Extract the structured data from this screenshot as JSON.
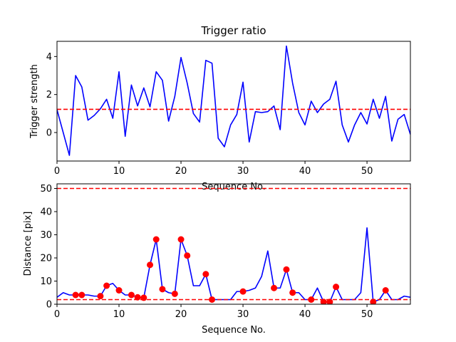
{
  "chart_data": [
    {
      "type": "line",
      "title": "Trigger ratio",
      "xlabel": "Sequence No.",
      "ylabel": "Trigger strength",
      "xlim": [
        0,
        57
      ],
      "ylim": [
        -1.5,
        4.8
      ],
      "xticks": [
        0,
        10,
        20,
        30,
        40,
        50
      ],
      "yticks": [
        0,
        2,
        4
      ],
      "grid": false,
      "threshold": 1.22,
      "series": [
        {
          "color": "#0000ff",
          "x": [
            0,
            1,
            2,
            3,
            4,
            5,
            6,
            7,
            8,
            9,
            10,
            11,
            12,
            13,
            14,
            15,
            16,
            17,
            18,
            19,
            20,
            21,
            22,
            23,
            24,
            25,
            26,
            27,
            28,
            29,
            30,
            31,
            32,
            33,
            34,
            35,
            36,
            37,
            38,
            39,
            40,
            41,
            42,
            43,
            44,
            45,
            46,
            47,
            48,
            49,
            50,
            51,
            52,
            53,
            54,
            55,
            56,
            57
          ],
          "values": [
            1.2,
            0.0,
            -1.2,
            3.0,
            2.4,
            0.65,
            0.9,
            1.25,
            1.75,
            0.75,
            3.2,
            -0.2,
            2.5,
            1.4,
            2.35,
            1.35,
            3.2,
            2.75,
            0.6,
            1.9,
            3.95,
            2.6,
            1.0,
            0.55,
            3.8,
            3.65,
            -0.3,
            -0.75,
            0.4,
            0.95,
            2.65,
            -0.5,
            1.1,
            1.05,
            1.1,
            1.4,
            0.15,
            4.55,
            2.6,
            1.05,
            0.4,
            1.65,
            1.05,
            1.5,
            1.75,
            2.7,
            0.4,
            -0.5,
            0.4,
            1.05,
            0.45,
            1.75,
            0.75,
            1.9,
            -0.45,
            0.7,
            0.95,
            -0.1
          ]
        }
      ],
      "reference_lines": [
        {
          "axis": "y",
          "value": 1.22,
          "color": "#ff0000",
          "style": "dashed"
        }
      ]
    },
    {
      "type": "line",
      "title": "",
      "xlabel": "Sequence No.",
      "ylabel": "Distance [pix]",
      "xlim": [
        0,
        57
      ],
      "ylim": [
        0,
        52
      ],
      "xticks": [
        0,
        10,
        20,
        30,
        40,
        50
      ],
      "yticks": [
        0,
        10,
        20,
        30,
        40,
        50
      ],
      "grid": false,
      "series": [
        {
          "color": "#0000ff",
          "x": [
            0,
            1,
            2,
            3,
            4,
            5,
            6,
            7,
            8,
            9,
            10,
            11,
            12,
            13,
            14,
            15,
            16,
            17,
            18,
            19,
            20,
            21,
            22,
            23,
            24,
            25,
            26,
            27,
            28,
            29,
            30,
            31,
            32,
            33,
            34,
            35,
            36,
            37,
            38,
            39,
            40,
            41,
            42,
            43,
            44,
            45,
            46,
            47,
            48,
            49,
            50,
            51,
            52,
            53,
            54,
            55,
            56,
            57
          ],
          "values": [
            3,
            5,
            4,
            4,
            4,
            4,
            3.5,
            3.5,
            8,
            9,
            6,
            4,
            4,
            3,
            2.8,
            17,
            28,
            6.5,
            5,
            4.5,
            28,
            21,
            8,
            8,
            13,
            2,
            2,
            2,
            2,
            5.5,
            5.5,
            6,
            7,
            12,
            23,
            7,
            7,
            15,
            5,
            5,
            2,
            2,
            7,
            1,
            1,
            7.5,
            2,
            2,
            2,
            5,
            33,
            1,
            2,
            6,
            2,
            2,
            3.5,
            3
          ]
        },
        {
          "type": "scatter",
          "color": "#ff0000",
          "x": [
            3,
            4,
            7,
            8,
            10,
            12,
            13,
            14,
            15,
            16,
            17,
            19,
            20,
            21,
            24,
            25,
            30,
            35,
            37,
            38,
            41,
            43,
            44,
            45,
            51,
            53
          ],
          "values": [
            4,
            4,
            3.5,
            8,
            6,
            4,
            3,
            2.8,
            17,
            28,
            6.5,
            4.5,
            28,
            21,
            13,
            2,
            5.5,
            7,
            15,
            5,
            2,
            1,
            1,
            7.5,
            1,
            6
          ]
        }
      ],
      "reference_lines": [
        {
          "axis": "y",
          "value": 50,
          "color": "#ff0000",
          "style": "dashed"
        },
        {
          "axis": "y",
          "value": 2,
          "color": "#ff0000",
          "style": "dashed"
        }
      ]
    }
  ]
}
